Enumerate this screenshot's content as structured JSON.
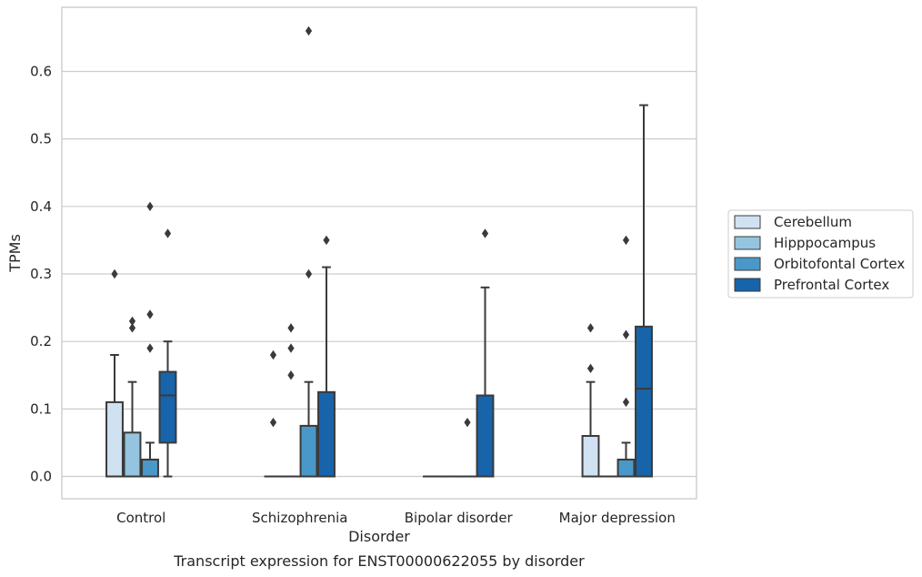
{
  "chart_data": {
    "type": "boxplot",
    "caption": "Transcript expression for ENST00000622055 by disorder",
    "xlabel": "Disorder",
    "ylabel": "TPMs",
    "ylim": [
      -0.033,
      0.695
    ],
    "yticks": [
      0.0,
      0.1,
      0.2,
      0.3,
      0.4,
      0.5,
      0.6
    ],
    "ytick_labels": [
      "0.0",
      "0.1",
      "0.2",
      "0.3",
      "0.4",
      "0.5",
      "0.6"
    ],
    "grid": "horizontal",
    "legend_position": "right",
    "categories": [
      "Control",
      "Schizophrenia",
      "Bipolar disorder",
      "Major depression"
    ],
    "series": [
      {
        "name": "Cerebellum",
        "color": "#d0e1f2",
        "boxes": [
          {
            "min": 0.0,
            "q1": 0.0,
            "median": 0.0,
            "q3": 0.11,
            "max": 0.18,
            "outliers": [
              0.3
            ]
          },
          {
            "min": 0.0,
            "q1": 0.0,
            "median": 0.0,
            "q3": 0.0,
            "max": 0.0,
            "outliers": [
              0.08,
              0.18
            ]
          },
          {
            "min": 0.0,
            "q1": 0.0,
            "median": 0.0,
            "q3": 0.0,
            "max": 0.0,
            "outliers": []
          },
          {
            "min": 0.0,
            "q1": 0.0,
            "median": 0.0,
            "q3": 0.06,
            "max": 0.14,
            "outliers": [
              0.16,
              0.22
            ]
          }
        ]
      },
      {
        "name": "Hipppocampus",
        "color": "#94c4df",
        "boxes": [
          {
            "min": 0.0,
            "q1": 0.0,
            "median": 0.0,
            "q3": 0.065,
            "max": 0.14,
            "outliers": [
              0.22,
              0.23
            ]
          },
          {
            "min": 0.0,
            "q1": 0.0,
            "median": 0.0,
            "q3": 0.0,
            "max": 0.0,
            "outliers": [
              0.15,
              0.19,
              0.22
            ]
          },
          {
            "min": 0.0,
            "q1": 0.0,
            "median": 0.0,
            "q3": 0.0,
            "max": 0.0,
            "outliers": []
          },
          {
            "min": 0.0,
            "q1": 0.0,
            "median": 0.0,
            "q3": 0.0,
            "max": 0.0,
            "outliers": []
          }
        ]
      },
      {
        "name": "Orbitofontal Cortex",
        "color": "#4a98c9",
        "boxes": [
          {
            "min": 0.0,
            "q1": 0.0,
            "median": 0.0,
            "q3": 0.025,
            "max": 0.05,
            "outliers": [
              0.19,
              0.24,
              0.4
            ]
          },
          {
            "min": 0.0,
            "q1": 0.0,
            "median": 0.0,
            "q3": 0.075,
            "max": 0.14,
            "outliers": [
              0.3,
              0.66
            ]
          },
          {
            "min": 0.0,
            "q1": 0.0,
            "median": 0.0,
            "q3": 0.0,
            "max": 0.0,
            "outliers": [
              0.08
            ]
          },
          {
            "min": 0.0,
            "q1": 0.0,
            "median": 0.0,
            "q3": 0.025,
            "max": 0.05,
            "outliers": [
              0.11,
              0.21,
              0.35
            ]
          }
        ]
      },
      {
        "name": "Prefrontal Cortex",
        "color": "#1764ab",
        "boxes": [
          {
            "min": 0.0,
            "q1": 0.05,
            "median": 0.12,
            "q3": 0.155,
            "max": 0.2,
            "outliers": [
              0.36
            ]
          },
          {
            "min": 0.0,
            "q1": 0.0,
            "median": 0.0,
            "q3": 0.125,
            "max": 0.31,
            "outliers": [
              0.35
            ]
          },
          {
            "min": 0.0,
            "q1": 0.0,
            "median": 0.0,
            "q3": 0.12,
            "max": 0.28,
            "outliers": [
              0.36
            ]
          },
          {
            "min": 0.0,
            "q1": 0.0,
            "median": 0.13,
            "q3": 0.222,
            "max": 0.55,
            "outliers": []
          }
        ]
      }
    ]
  }
}
